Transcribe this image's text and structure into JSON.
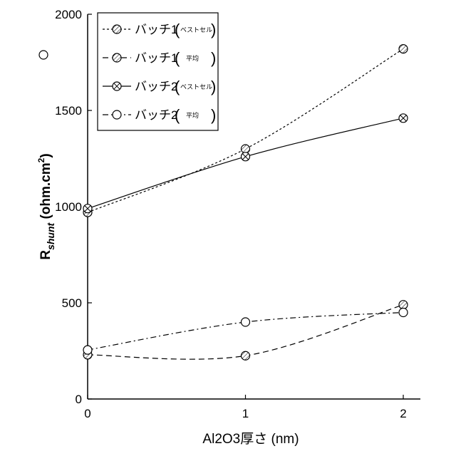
{
  "chart_data": {
    "type": "line",
    "xlabel": "Al2O3厚さ (nm)",
    "ylabel_main": "R",
    "ylabel_sub": "shunt",
    "ylabel_unit": " (ohm.cm",
    "ylabel_sup": "2",
    "ylabel_close": ")",
    "xlim": [
      0,
      2.1
    ],
    "ylim": [
      0,
      2000
    ],
    "xticks": [
      "0",
      "1",
      "2"
    ],
    "yticks": [
      "0",
      "500",
      "1000",
      "1500",
      "2000"
    ],
    "x": [
      0,
      1,
      2
    ],
    "series": [
      {
        "name": "バッチ1",
        "name_note": "ベストセル",
        "values": [
          970,
          1300,
          1820
        ],
        "line": "dotted",
        "marker": "hatched-circle"
      },
      {
        "name": "バッチ1",
        "name_note": "平均",
        "values": [
          230,
          225,
          490
        ],
        "line": "dashed",
        "marker": "hatched-circle"
      },
      {
        "name": "バッチ2",
        "name_note": "ベストセル",
        "values": [
          990,
          1260,
          1460
        ],
        "line": "solid",
        "marker": "crossed-circle"
      },
      {
        "name": "バッチ2",
        "name_note": "平均",
        "values": [
          255,
          400,
          450
        ],
        "line": "dashdot",
        "marker": "open-circle"
      }
    ],
    "legend_position": "top-left",
    "grid": false
  }
}
